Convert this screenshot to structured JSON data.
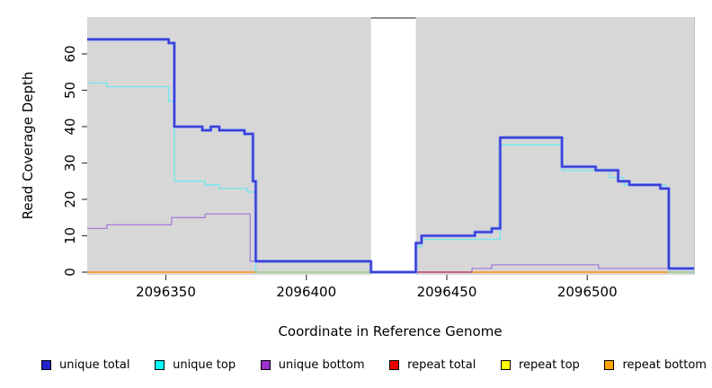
{
  "chart_data": {
    "type": "line",
    "subtype": "step",
    "title": "",
    "xlabel": "Coordinate in Reference Genome",
    "ylabel": "Read Coverage Depth",
    "xlim": [
      2096322,
      2096538
    ],
    "ylim": [
      0,
      70
    ],
    "x_ticks": [
      2096350,
      2096400,
      2096450,
      2096500
    ],
    "y_ticks": [
      0,
      10,
      20,
      30,
      40,
      50,
      60
    ],
    "grid": false,
    "plot_background": "#d7d7d7",
    "masked_region": {
      "from": 2096423,
      "to": 2096439,
      "color": "#ffffff",
      "top_border_color": "#8f8f8f"
    },
    "legend_position": "bottom",
    "series": [
      {
        "name": "unique total",
        "z": 9,
        "color": "#3434cf",
        "halo_color": "#7d93f2",
        "width": 1.8,
        "points": [
          [
            2096322,
            64
          ],
          [
            2096351,
            63
          ],
          [
            2096353,
            40
          ],
          [
            2096363,
            39
          ],
          [
            2096366,
            40
          ],
          [
            2096369,
            39
          ],
          [
            2096378,
            38
          ],
          [
            2096381,
            25
          ],
          [
            2096382,
            3
          ],
          [
            2096423,
            0
          ],
          [
            2096439,
            8
          ],
          [
            2096441,
            10
          ],
          [
            2096460,
            11
          ],
          [
            2096466,
            12
          ],
          [
            2096469,
            37
          ],
          [
            2096491,
            29
          ],
          [
            2096503,
            28
          ],
          [
            2096511,
            25
          ],
          [
            2096515,
            24
          ],
          [
            2096526,
            23
          ],
          [
            2096529,
            1
          ],
          [
            2096538,
            1
          ]
        ]
      },
      {
        "name": "unique top",
        "z": 5,
        "color": "#6fe7ee",
        "width": 1.3,
        "points": [
          [
            2096322,
            52
          ],
          [
            2096329,
            51
          ],
          [
            2096351,
            47
          ],
          [
            2096353,
            25
          ],
          [
            2096364,
            24
          ],
          [
            2096369,
            23
          ],
          [
            2096379,
            22
          ],
          [
            2096382,
            0
          ],
          [
            2096439,
            7
          ],
          [
            2096441,
            9
          ],
          [
            2096469,
            35
          ],
          [
            2096491,
            28
          ],
          [
            2096508,
            26
          ],
          [
            2096513,
            24
          ],
          [
            2096528,
            23
          ],
          [
            2096529,
            0
          ],
          [
            2096538,
            0
          ]
        ]
      },
      {
        "name": "unique bottom",
        "z": 4,
        "color": "#a97fd8",
        "width": 1.3,
        "points": [
          [
            2096322,
            12
          ],
          [
            2096329,
            13
          ],
          [
            2096352,
            15
          ],
          [
            2096364,
            16
          ],
          [
            2096380,
            3
          ],
          [
            2096423,
            0
          ],
          [
            2096459,
            1
          ],
          [
            2096466,
            2
          ],
          [
            2096504,
            1
          ],
          [
            2096538,
            1
          ]
        ]
      },
      {
        "name": "repeat total",
        "z": 2,
        "color": "#dd0000",
        "width": 1.2,
        "points": [
          [
            2096322,
            0
          ],
          [
            2096538,
            0
          ]
        ]
      },
      {
        "name": "repeat top",
        "z": 1,
        "color": "#ffff00",
        "width": 1.2,
        "points": [
          [
            2096322,
            0
          ],
          [
            2096538,
            0
          ]
        ]
      },
      {
        "name": "repeat bottom",
        "z": 3,
        "color": "#ff9d26",
        "width": 1.6,
        "points": [
          [
            2096322,
            0
          ],
          [
            2096538,
            0
          ]
        ]
      }
    ],
    "baseline_blend_segments": [
      {
        "from": 2096382,
        "to": 2096423,
        "color": "#a6d39c"
      },
      {
        "from": 2096529,
        "to": 2096536,
        "color": "#a6d39c"
      },
      {
        "from": 2096439,
        "to": 2096459,
        "color": "#c25e7e"
      }
    ],
    "legend": [
      {
        "label": "unique total",
        "color": "#2222cc"
      },
      {
        "label": "unique top",
        "color": "#00ffff"
      },
      {
        "label": "unique bottom",
        "color": "#9933cc"
      },
      {
        "label": "repeat total",
        "color": "#ee0000"
      },
      {
        "label": "repeat top",
        "color": "#ffff00"
      },
      {
        "label": "repeat bottom",
        "color": "#ffa500"
      }
    ]
  }
}
